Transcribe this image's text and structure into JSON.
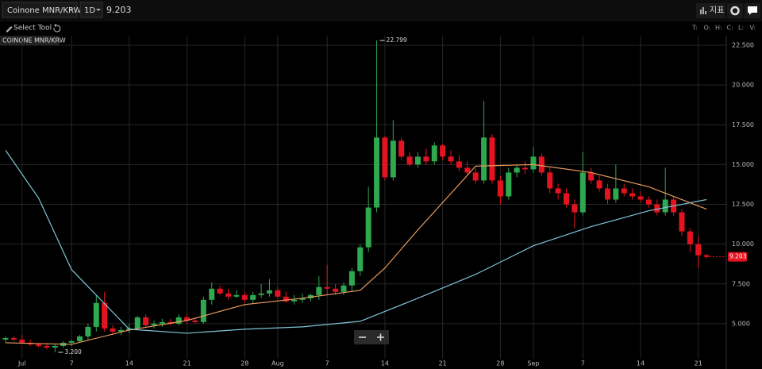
{
  "toolbar": {
    "symbol": "Coinone MNR/KRW",
    "interval": "1D",
    "price": "9.203",
    "indicators": "지표",
    "select_tool": "Select Tool",
    "ohlc_labels": [
      "T:",
      "O:",
      "H:",
      "C:",
      "L:",
      "V:"
    ]
  },
  "chart_data": {
    "type": "candlestick",
    "title": "COINONE MNR/KRW",
    "categories": [
      "Jun 29",
      "Jun 30",
      "Jul 1",
      "Jul 2",
      "Jul 3",
      "Jul 4",
      "Jul 5",
      "Jul 6",
      "Jul 7",
      "Jul 8",
      "Jul 9",
      "Jul 10",
      "Jul 11",
      "Jul 12",
      "Jul 13",
      "Jul 14",
      "Jul 15",
      "Jul 16",
      "Jul 17",
      "Jul 18",
      "Jul 19",
      "Jul 20",
      "Jul 21",
      "Jul 22",
      "Jul 23",
      "Jul 24",
      "Jul 25",
      "Jul 26",
      "Jul 27",
      "Jul 28",
      "Jul 29",
      "Jul 30",
      "Jul 31",
      "Aug 1",
      "Aug 2",
      "Aug 3",
      "Aug 4",
      "Aug 5",
      "Aug 6",
      "Aug 7",
      "Aug 8",
      "Aug 9",
      "Aug 10",
      "Aug 11",
      "Aug 12",
      "Aug 13",
      "Aug 14",
      "Aug 15",
      "Aug 16",
      "Aug 17",
      "Aug 18",
      "Aug 19",
      "Aug 20",
      "Aug 21",
      "Aug 22",
      "Aug 23",
      "Aug 24",
      "Aug 25",
      "Aug 26",
      "Aug 27",
      "Aug 28",
      "Aug 29",
      "Aug 30",
      "Aug 31",
      "Sep 1",
      "Sep 2",
      "Sep 3",
      "Sep 4",
      "Sep 5",
      "Sep 6",
      "Sep 7",
      "Sep 8",
      "Sep 9",
      "Sep 10",
      "Sep 11",
      "Sep 12",
      "Sep 13",
      "Sep 14",
      "Sep 15",
      "Sep 16",
      "Sep 17",
      "Sep 18",
      "Sep 19",
      "Sep 20",
      "Sep 21",
      "Sep 22"
    ],
    "open": [
      4.0,
      4.1,
      4.0,
      3.8,
      3.7,
      3.6,
      3.5,
      3.6,
      3.8,
      3.9,
      4.2,
      4.8,
      6.3,
      4.7,
      4.5,
      4.6,
      4.7,
      5.4,
      4.9,
      5.0,
      5.1,
      5.0,
      5.4,
      5.2,
      5.1,
      6.5,
      7.2,
      6.9,
      6.7,
      6.8,
      6.5,
      6.8,
      6.9,
      7.1,
      6.7,
      6.4,
      6.5,
      6.6,
      6.8,
      7.3,
      7.2,
      7.0,
      7.4,
      8.3,
      9.8,
      12.3,
      16.7,
      14.2,
      16.5,
      15.5,
      15.0,
      15.5,
      15.2,
      16.2,
      15.5,
      15.2,
      14.8,
      14.5,
      14.0,
      16.7,
      14.0,
      13.0,
      14.5,
      14.8,
      14.7,
      15.5,
      14.5,
      13.5,
      13.2,
      12.5,
      12.0,
      14.5,
      14.0,
      13.5,
      12.8,
      13.5,
      13.2,
      13.0,
      12.8,
      12.5,
      12.0,
      12.8,
      12.0,
      10.8,
      10.0,
      9.3
    ],
    "high": [
      4.2,
      4.2,
      4.3,
      4.0,
      3.8,
      3.8,
      3.7,
      3.9,
      4.0,
      4.3,
      5.0,
      6.8,
      7.0,
      4.9,
      4.8,
      5.0,
      5.5,
      5.6,
      5.2,
      5.3,
      5.3,
      5.6,
      5.6,
      5.4,
      6.7,
      7.6,
      7.4,
      7.2,
      7.1,
      7.0,
      7.0,
      7.5,
      7.8,
      7.3,
      7.0,
      6.8,
      6.9,
      6.9,
      8.0,
      8.7,
      7.5,
      7.6,
      8.5,
      10.0,
      13.6,
      22.799,
      16.8,
      17.8,
      16.7,
      15.8,
      15.8,
      16.0,
      16.4,
      16.3,
      15.9,
      15.6,
      15.2,
      14.8,
      19.0,
      16.9,
      14.3,
      14.8,
      15.0,
      15.2,
      16.1,
      15.7,
      14.8,
      13.8,
      13.5,
      12.8,
      15.8,
      14.8,
      14.3,
      13.8,
      15.0,
      13.8,
      13.5,
      13.3,
      13.0,
      12.8,
      14.8,
      13.0,
      12.2,
      11.0,
      10.5,
      9.4
    ],
    "low": [
      3.8,
      3.9,
      3.7,
      3.6,
      3.5,
      3.4,
      3.2,
      3.5,
      3.6,
      3.8,
      4.0,
      4.5,
      4.5,
      4.3,
      4.3,
      4.4,
      4.6,
      4.8,
      4.7,
      4.8,
      4.9,
      4.9,
      5.0,
      5.0,
      5.0,
      6.2,
      6.8,
      6.5,
      6.6,
      6.3,
      6.3,
      6.6,
      6.7,
      6.6,
      6.3,
      6.2,
      6.3,
      6.4,
      6.5,
      6.8,
      6.8,
      6.8,
      7.0,
      8.0,
      9.5,
      12.0,
      14.0,
      14.0,
      15.3,
      14.9,
      14.8,
      15.0,
      15.0,
      15.3,
      15.0,
      14.6,
      14.3,
      13.8,
      13.8,
      13.8,
      12.5,
      12.8,
      14.2,
      14.4,
      14.5,
      14.3,
      13.2,
      12.8,
      12.3,
      11.0,
      11.8,
      13.8,
      13.3,
      12.5,
      12.6,
      13.0,
      12.8,
      12.6,
      12.3,
      11.8,
      11.8,
      11.8,
      10.5,
      9.5,
      8.5,
      9.1
    ],
    "close": [
      4.1,
      4.0,
      3.8,
      3.7,
      3.6,
      3.5,
      3.6,
      3.8,
      3.9,
      4.2,
      4.8,
      6.3,
      4.7,
      4.5,
      4.6,
      4.7,
      5.4,
      4.9,
      5.0,
      5.1,
      5.0,
      5.4,
      5.2,
      5.1,
      6.5,
      7.2,
      6.9,
      6.7,
      6.8,
      6.5,
      6.8,
      6.9,
      7.1,
      6.7,
      6.4,
      6.5,
      6.6,
      6.8,
      7.3,
      7.2,
      7.0,
      7.4,
      8.3,
      9.8,
      12.3,
      16.7,
      14.2,
      16.5,
      15.5,
      15.0,
      15.5,
      15.2,
      16.2,
      15.5,
      15.2,
      14.8,
      14.5,
      14.0,
      16.7,
      14.0,
      13.0,
      14.5,
      14.8,
      14.7,
      15.5,
      14.5,
      13.5,
      13.2,
      12.5,
      12.0,
      14.5,
      14.0,
      13.5,
      12.8,
      13.5,
      13.2,
      13.0,
      12.8,
      12.5,
      12.0,
      12.8,
      12.0,
      10.8,
      10.0,
      9.3,
      9.203
    ],
    "up_color": "#2fa84f",
    "down_color": "#e3141f",
    "lines": [
      {
        "color": "#e89a5c",
        "x": [
          "Jun 29",
          "Jul 7",
          "Jul 14",
          "Jul 21",
          "Jul 28",
          "Aug 4",
          "Aug 11",
          "Aug 14",
          "Aug 18",
          "Aug 25",
          "Sep 1",
          "Sep 8",
          "Sep 15",
          "Sep 22"
        ],
        "values": [
          3.8,
          3.7,
          4.6,
          5.2,
          6.2,
          6.6,
          7.1,
          8.5,
          10.9,
          14.9,
          15.0,
          14.5,
          13.6,
          12.2
        ]
      },
      {
        "color": "#7fc4d6",
        "x": [
          "Jun 29",
          "Jul 3",
          "Jul 7",
          "Jul 14",
          "Jul 21",
          "Jul 28",
          "Aug 4",
          "Aug 11",
          "Aug 18",
          "Aug 25",
          "Sep 1",
          "Sep 8",
          "Sep 15",
          "Sep 22"
        ],
        "values": [
          15.9,
          12.9,
          8.4,
          4.65,
          4.4,
          4.65,
          4.8,
          5.15,
          6.6,
          8.1,
          9.9,
          11.1,
          12.1,
          12.8
        ]
      }
    ],
    "annotations": [
      {
        "text": "22.799",
        "at": "Aug 13",
        "value": 22.799
      },
      {
        "text": "3.200",
        "at": "Jul 5",
        "value": 3.2
      }
    ],
    "last_price": {
      "value": 9.203,
      "label": "9.203"
    },
    "ylim": [
      2.8,
      23.1
    ],
    "yticks": [
      {
        "value": 5,
        "label": "5.000"
      },
      {
        "value": 7.5,
        "label": "7.500"
      },
      {
        "value": 10,
        "label": "10.000"
      },
      {
        "value": 12.5,
        "label": "12.500"
      },
      {
        "value": 15,
        "label": "15.000"
      },
      {
        "value": 17.5,
        "label": "17.500"
      },
      {
        "value": 20,
        "label": "20.000"
      },
      {
        "value": 22.5,
        "label": "22.500"
      }
    ],
    "xticks": [
      {
        "value": "Jul 1",
        "label": "Jul"
      },
      {
        "value": "Jul 7",
        "label": "7"
      },
      {
        "value": "Jul 14",
        "label": "14"
      },
      {
        "value": "Jul 21",
        "label": "21"
      },
      {
        "value": "Jul 28",
        "label": "28"
      },
      {
        "value": "Aug 1",
        "label": "Aug"
      },
      {
        "value": "Aug 7",
        "label": "7"
      },
      {
        "value": "Aug 14",
        "label": "14"
      },
      {
        "value": "Aug 21",
        "label": "21"
      },
      {
        "value": "Aug 28",
        "label": "28"
      },
      {
        "value": "Sep 1",
        "label": "Sep"
      },
      {
        "value": "Sep 7",
        "label": "7"
      },
      {
        "value": "Sep 14",
        "label": "14"
      },
      {
        "value": "Sep 21",
        "label": "21"
      }
    ],
    "grid": true
  }
}
